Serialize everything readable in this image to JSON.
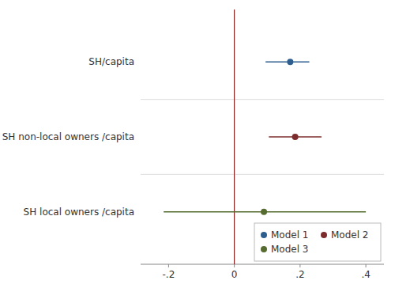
{
  "chart_data": {
    "type": "coefplot",
    "orientation": "horizontal",
    "categories": [
      "SH/capita",
      "SH non-local owners /capita",
      "SH local owners /capita"
    ],
    "series": [
      {
        "name": "Model 1",
        "color": "#2E5E8E",
        "values": [
          0.17,
          null,
          null
        ],
        "ci_low": [
          0.095,
          null,
          null
        ],
        "ci_high": [
          0.228,
          null,
          null
        ]
      },
      {
        "name": "Model 2",
        "color": "#7B2D2D",
        "values": [
          null,
          0.185,
          null
        ],
        "ci_low": [
          null,
          0.105,
          null
        ],
        "ci_high": [
          null,
          0.265,
          null
        ]
      },
      {
        "name": "Model 3",
        "color": "#556B2F",
        "values": [
          null,
          null,
          0.09
        ],
        "ci_low": [
          null,
          null,
          -0.215
        ],
        "ci_high": [
          null,
          null,
          0.4
        ]
      }
    ],
    "xlim": [
      -0.285,
      0.455
    ],
    "xticks": [
      {
        "value": -0.2,
        "label": "-.2"
      },
      0,
      {
        "value": 0.2,
        "label": ".2"
      },
      {
        "value": 0.4,
        "label": ".4"
      }
    ],
    "reference_lines": [
      {
        "value": 0,
        "color": "#8B2020"
      }
    ],
    "grid": false,
    "legend": "lower right"
  }
}
